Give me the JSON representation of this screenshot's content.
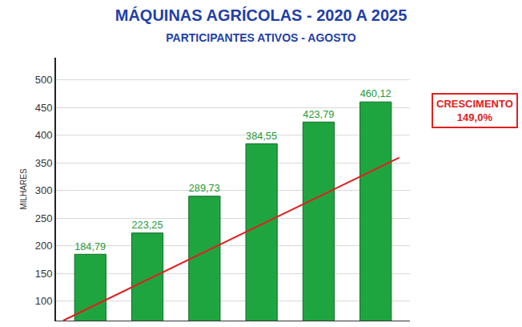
{
  "chart_data": {
    "type": "bar",
    "title": "MÁQUINAS AGRÍCOLAS - 2020 A 2025",
    "subtitle": "PARTICIPANTES ATIVOS - AGOSTO",
    "y_label": "MILHARES",
    "categories": [
      null,
      null,
      null,
      null,
      null,
      null
    ],
    "values": [
      184.79,
      223.25,
      289.73,
      384.55,
      423.79,
      460.12
    ],
    "value_labels": [
      "184,79",
      "223,25",
      "289,73",
      "384,55",
      "423,79",
      "460,12"
    ],
    "color": "#1fa53f",
    "ylim": [
      65,
      540
    ],
    "yticks": [
      100,
      150,
      200,
      250,
      300,
      350,
      400,
      450,
      500
    ],
    "grid": true,
    "data_labels": true,
    "tick_labels": "y",
    "annotations": [
      "CRESCIMENTO",
      "149,0%"
    ]
  }
}
